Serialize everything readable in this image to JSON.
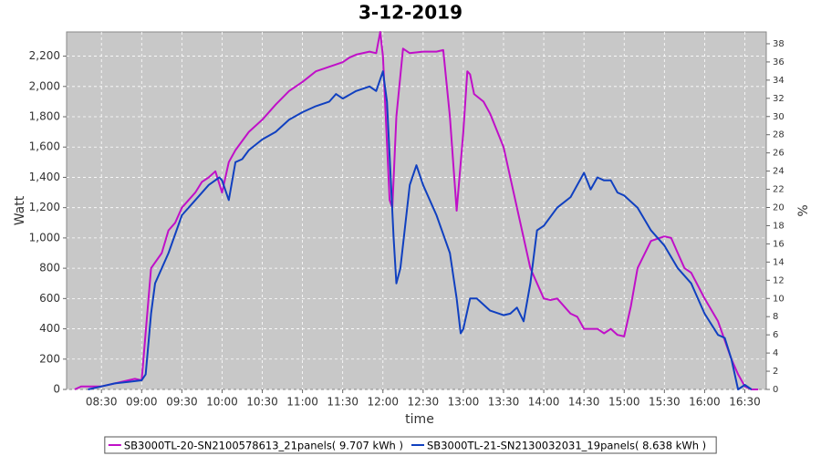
{
  "chart_data": {
    "type": "line",
    "title": "3-12-2019",
    "x_label": "time",
    "y_label": "Watt",
    "y2_label": "%",
    "xlim": [
      "08:04",
      "16:46"
    ],
    "xticks": [
      "08:30",
      "09:00",
      "09:30",
      "10:00",
      "10:30",
      "11:00",
      "11:30",
      "12:00",
      "12:30",
      "13:00",
      "13:30",
      "14:00",
      "14:30",
      "15:00",
      "15:30",
      "16:00",
      "16:30"
    ],
    "ylim": [
      0,
      2360
    ],
    "yticks": [
      0,
      200,
      400,
      600,
      800,
      {
        "value": 1000,
        "label": "1,000"
      },
      {
        "value": 1200,
        "label": "1,200"
      },
      {
        "value": 1400,
        "label": "1,400"
      },
      {
        "value": 1600,
        "label": "1,600"
      },
      {
        "value": 1800,
        "label": "1,800"
      },
      {
        "value": 2000,
        "label": "2,000"
      },
      {
        "value": 2200,
        "label": "2,200"
      }
    ],
    "y2lim": [
      0,
      39.3
    ],
    "y2ticks": [
      0,
      2,
      4,
      6,
      8,
      10,
      12,
      14,
      16,
      18,
      20,
      22,
      24,
      26,
      28,
      30,
      32,
      34,
      36,
      38
    ],
    "grid": true,
    "background": "#c8c8c8",
    "legend": "bottom",
    "series": [
      {
        "name": "SB3000TL-20-SN2100578613_21panels( 9.707 kWh )",
        "color": "#c010c8",
        "x": [
          "08:10",
          "08:15",
          "08:30",
          "08:40",
          "08:50",
          "08:55",
          "09:00",
          "09:07",
          "09:15",
          "09:20",
          "09:25",
          "09:30",
          "09:40",
          "09:45",
          "09:50",
          "09:55",
          "10:00",
          "10:05",
          "10:10",
          "10:20",
          "10:30",
          "10:40",
          "10:50",
          "11:00",
          "11:10",
          "11:20",
          "11:30",
          "11:35",
          "11:40",
          "11:50",
          "11:55",
          "11:58",
          "12:00",
          "12:05",
          "12:07",
          "12:10",
          "12:15",
          "12:20",
          "12:30",
          "12:40",
          "12:45",
          "12:50",
          "12:55",
          "13:00",
          "13:03",
          "13:05",
          "13:08",
          "13:15",
          "13:20",
          "13:30",
          "13:40",
          "13:50",
          "14:00",
          "14:05",
          "14:10",
          "14:20",
          "14:25",
          "14:30",
          "14:40",
          "14:45",
          "14:50",
          "14:55",
          "15:00",
          "15:05",
          "15:10",
          "15:20",
          "15:30",
          "15:35",
          "15:40",
          "15:45",
          "15:50",
          "16:00",
          "16:10",
          "16:20",
          "16:25",
          "16:30",
          "16:35",
          "16:40"
        ],
        "values": [
          0,
          20,
          20,
          40,
          60,
          70,
          60,
          800,
          900,
          1050,
          1100,
          1200,
          1300,
          1370,
          1400,
          1440,
          1300,
          1500,
          1580,
          1700,
          1780,
          1880,
          1970,
          2030,
          2100,
          2130,
          2160,
          2190,
          2210,
          2230,
          2220,
          2360,
          2200,
          1250,
          1200,
          1800,
          2250,
          2220,
          2230,
          2230,
          2240,
          1800,
          1180,
          1700,
          2100,
          2080,
          1950,
          1900,
          1820,
          1600,
          1200,
          800,
          600,
          590,
          600,
          500,
          480,
          400,
          400,
          370,
          400,
          360,
          350,
          550,
          800,
          980,
          1010,
          1000,
          900,
          800,
          770,
          600,
          450,
          200,
          100,
          20,
          0,
          0
        ]
      },
      {
        "name": "SB3000TL-21-SN2130032031_19panels( 8.638 kWh )",
        "color": "#1040c0",
        "x": [
          "08:20",
          "08:30",
          "08:40",
          "08:50",
          "09:00",
          "09:03",
          "09:07",
          "09:10",
          "09:20",
          "09:30",
          "09:40",
          "09:50",
          "09:58",
          "10:00",
          "10:05",
          "10:10",
          "10:15",
          "10:20",
          "10:30",
          "10:40",
          "10:50",
          "11:00",
          "11:10",
          "11:20",
          "11:25",
          "11:30",
          "11:40",
          "11:50",
          "11:55",
          "12:00",
          "12:03",
          "12:08",
          "12:10",
          "12:13",
          "12:20",
          "12:25",
          "12:30",
          "12:40",
          "12:50",
          "12:55",
          "12:58",
          "13:00",
          "13:05",
          "13:10",
          "13:20",
          "13:30",
          "13:35",
          "13:40",
          "13:45",
          "13:50",
          "13:55",
          "14:00",
          "14:10",
          "14:20",
          "14:30",
          "14:35",
          "14:40",
          "14:45",
          "14:50",
          "14:55",
          "15:00",
          "15:10",
          "15:20",
          "15:30",
          "15:40",
          "15:50",
          "16:00",
          "16:10",
          "16:15",
          "16:20",
          "16:25",
          "16:30",
          "16:35"
        ],
        "values": [
          0,
          20,
          40,
          50,
          60,
          100,
          500,
          700,
          900,
          1150,
          1250,
          1350,
          1400,
          1380,
          1250,
          1500,
          1520,
          1580,
          1650,
          1700,
          1780,
          1830,
          1870,
          1900,
          1950,
          1920,
          1970,
          2000,
          1970,
          2100,
          1900,
          1000,
          700,
          800,
          1350,
          1480,
          1350,
          1150,
          900,
          600,
          370,
          400,
          600,
          600,
          520,
          490,
          500,
          540,
          450,
          700,
          1050,
          1080,
          1200,
          1270,
          1430,
          1320,
          1400,
          1380,
          1380,
          1300,
          1280,
          1200,
          1050,
          950,
          800,
          700,
          500,
          360,
          340,
          200,
          0,
          30,
          0
        ]
      }
    ]
  }
}
